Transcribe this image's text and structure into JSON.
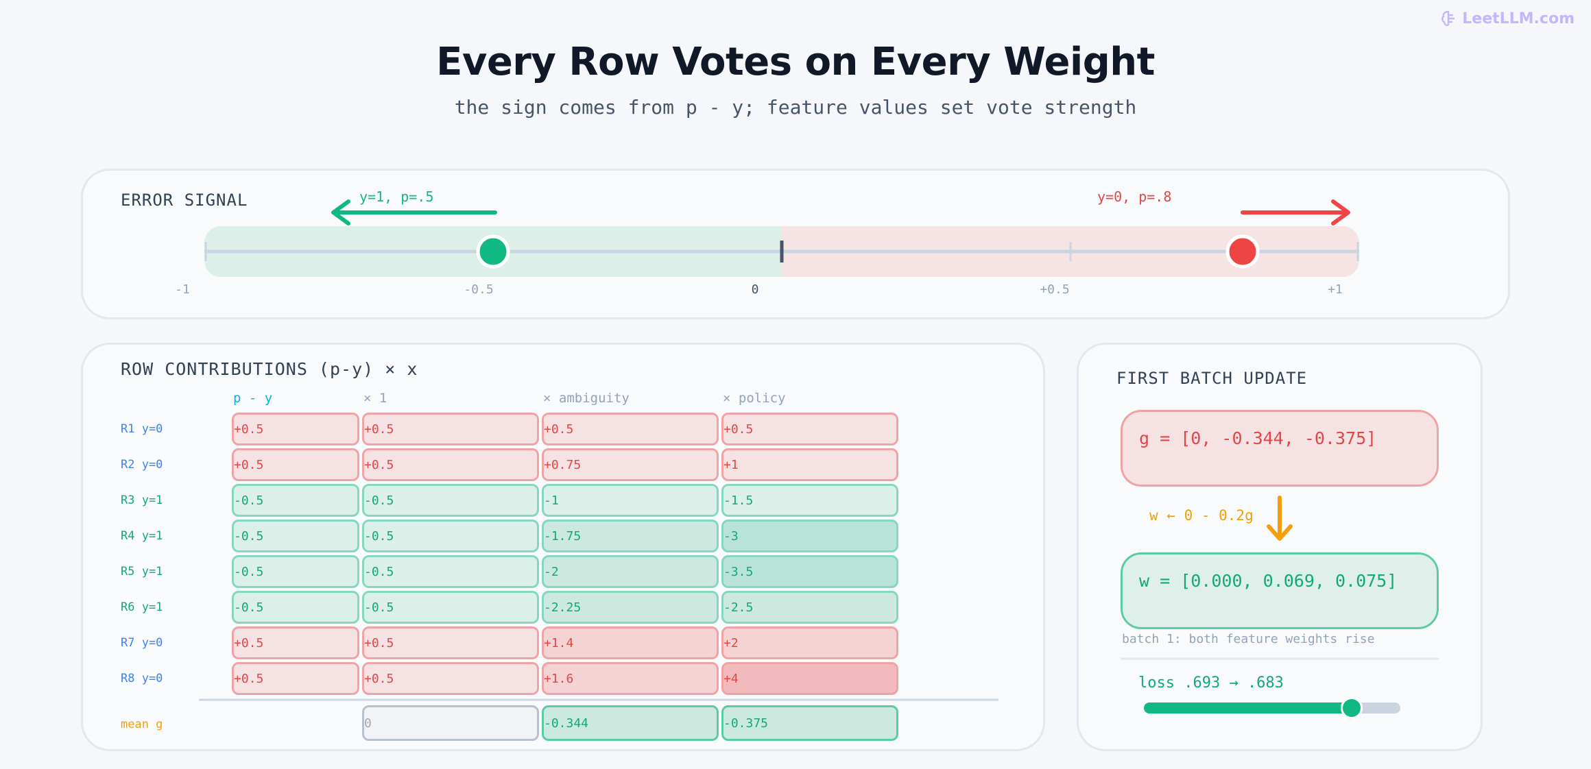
{
  "brand": {
    "name": "LeetLLM.com",
    "icon": "brain-icon"
  },
  "title": "Every Row Votes on Every Weight",
  "subtitle": "the sign comes from p - y; feature values set vote strength",
  "error_signal": {
    "label": "ERROR SIGNAL",
    "ticks": [
      "-1",
      "-0.5",
      "0",
      "+0.5",
      "+1"
    ],
    "left_marker": {
      "label": "y=1, p=.5",
      "value": -0.5,
      "color": "#10b981"
    },
    "right_marker": {
      "label": "y=0, p=.8",
      "value": 0.8,
      "color": "#ef4444"
    }
  },
  "contributions": {
    "label": "ROW CONTRIBUTIONS (p-y) × x",
    "columns": [
      "p - y",
      "× 1",
      "× ambiguity",
      "× policy"
    ],
    "rows": [
      {
        "label": "R1 y=0",
        "cells": [
          "+0.5",
          "+0.5",
          "+0.5",
          "+0.5"
        ]
      },
      {
        "label": "R2 y=0",
        "cells": [
          "+0.5",
          "+0.5",
          "+0.75",
          "+1"
        ]
      },
      {
        "label": "R3 y=1",
        "cells": [
          "-0.5",
          "-0.5",
          "-1",
          "-1.5"
        ]
      },
      {
        "label": "R4 y=1",
        "cells": [
          "-0.5",
          "-0.5",
          "-1.75",
          "-3"
        ]
      },
      {
        "label": "R5 y=1",
        "cells": [
          "-0.5",
          "-0.5",
          "-2",
          "-3.5"
        ]
      },
      {
        "label": "R6 y=1",
        "cells": [
          "-0.5",
          "-0.5",
          "-2.25",
          "-2.5"
        ]
      },
      {
        "label": "R7 y=0",
        "cells": [
          "+0.5",
          "+0.5",
          "+1.4",
          "+2"
        ]
      },
      {
        "label": "R8 y=0",
        "cells": [
          "+0.5",
          "+0.5",
          "+1.6",
          "+4"
        ]
      }
    ],
    "mean": {
      "label": "mean g",
      "cells": [
        "0",
        "-0.344",
        "-0.375"
      ]
    }
  },
  "batch_update": {
    "label": "FIRST BATCH UPDATE",
    "g_text": "g = [0, -0.344, -0.375]",
    "update_rule": "w ← 0 - 0.2g",
    "w_text": "w = [0.000, 0.069, 0.075]",
    "caption": "batch 1: both feature weights rise",
    "loss_text": "loss .693 → .683",
    "loss_progress": 0.81
  },
  "colors": {
    "positive": "#e04848",
    "negative": "#12a87a",
    "accent_orange": "#f59e0b",
    "label_blue": "#3b82f6"
  }
}
